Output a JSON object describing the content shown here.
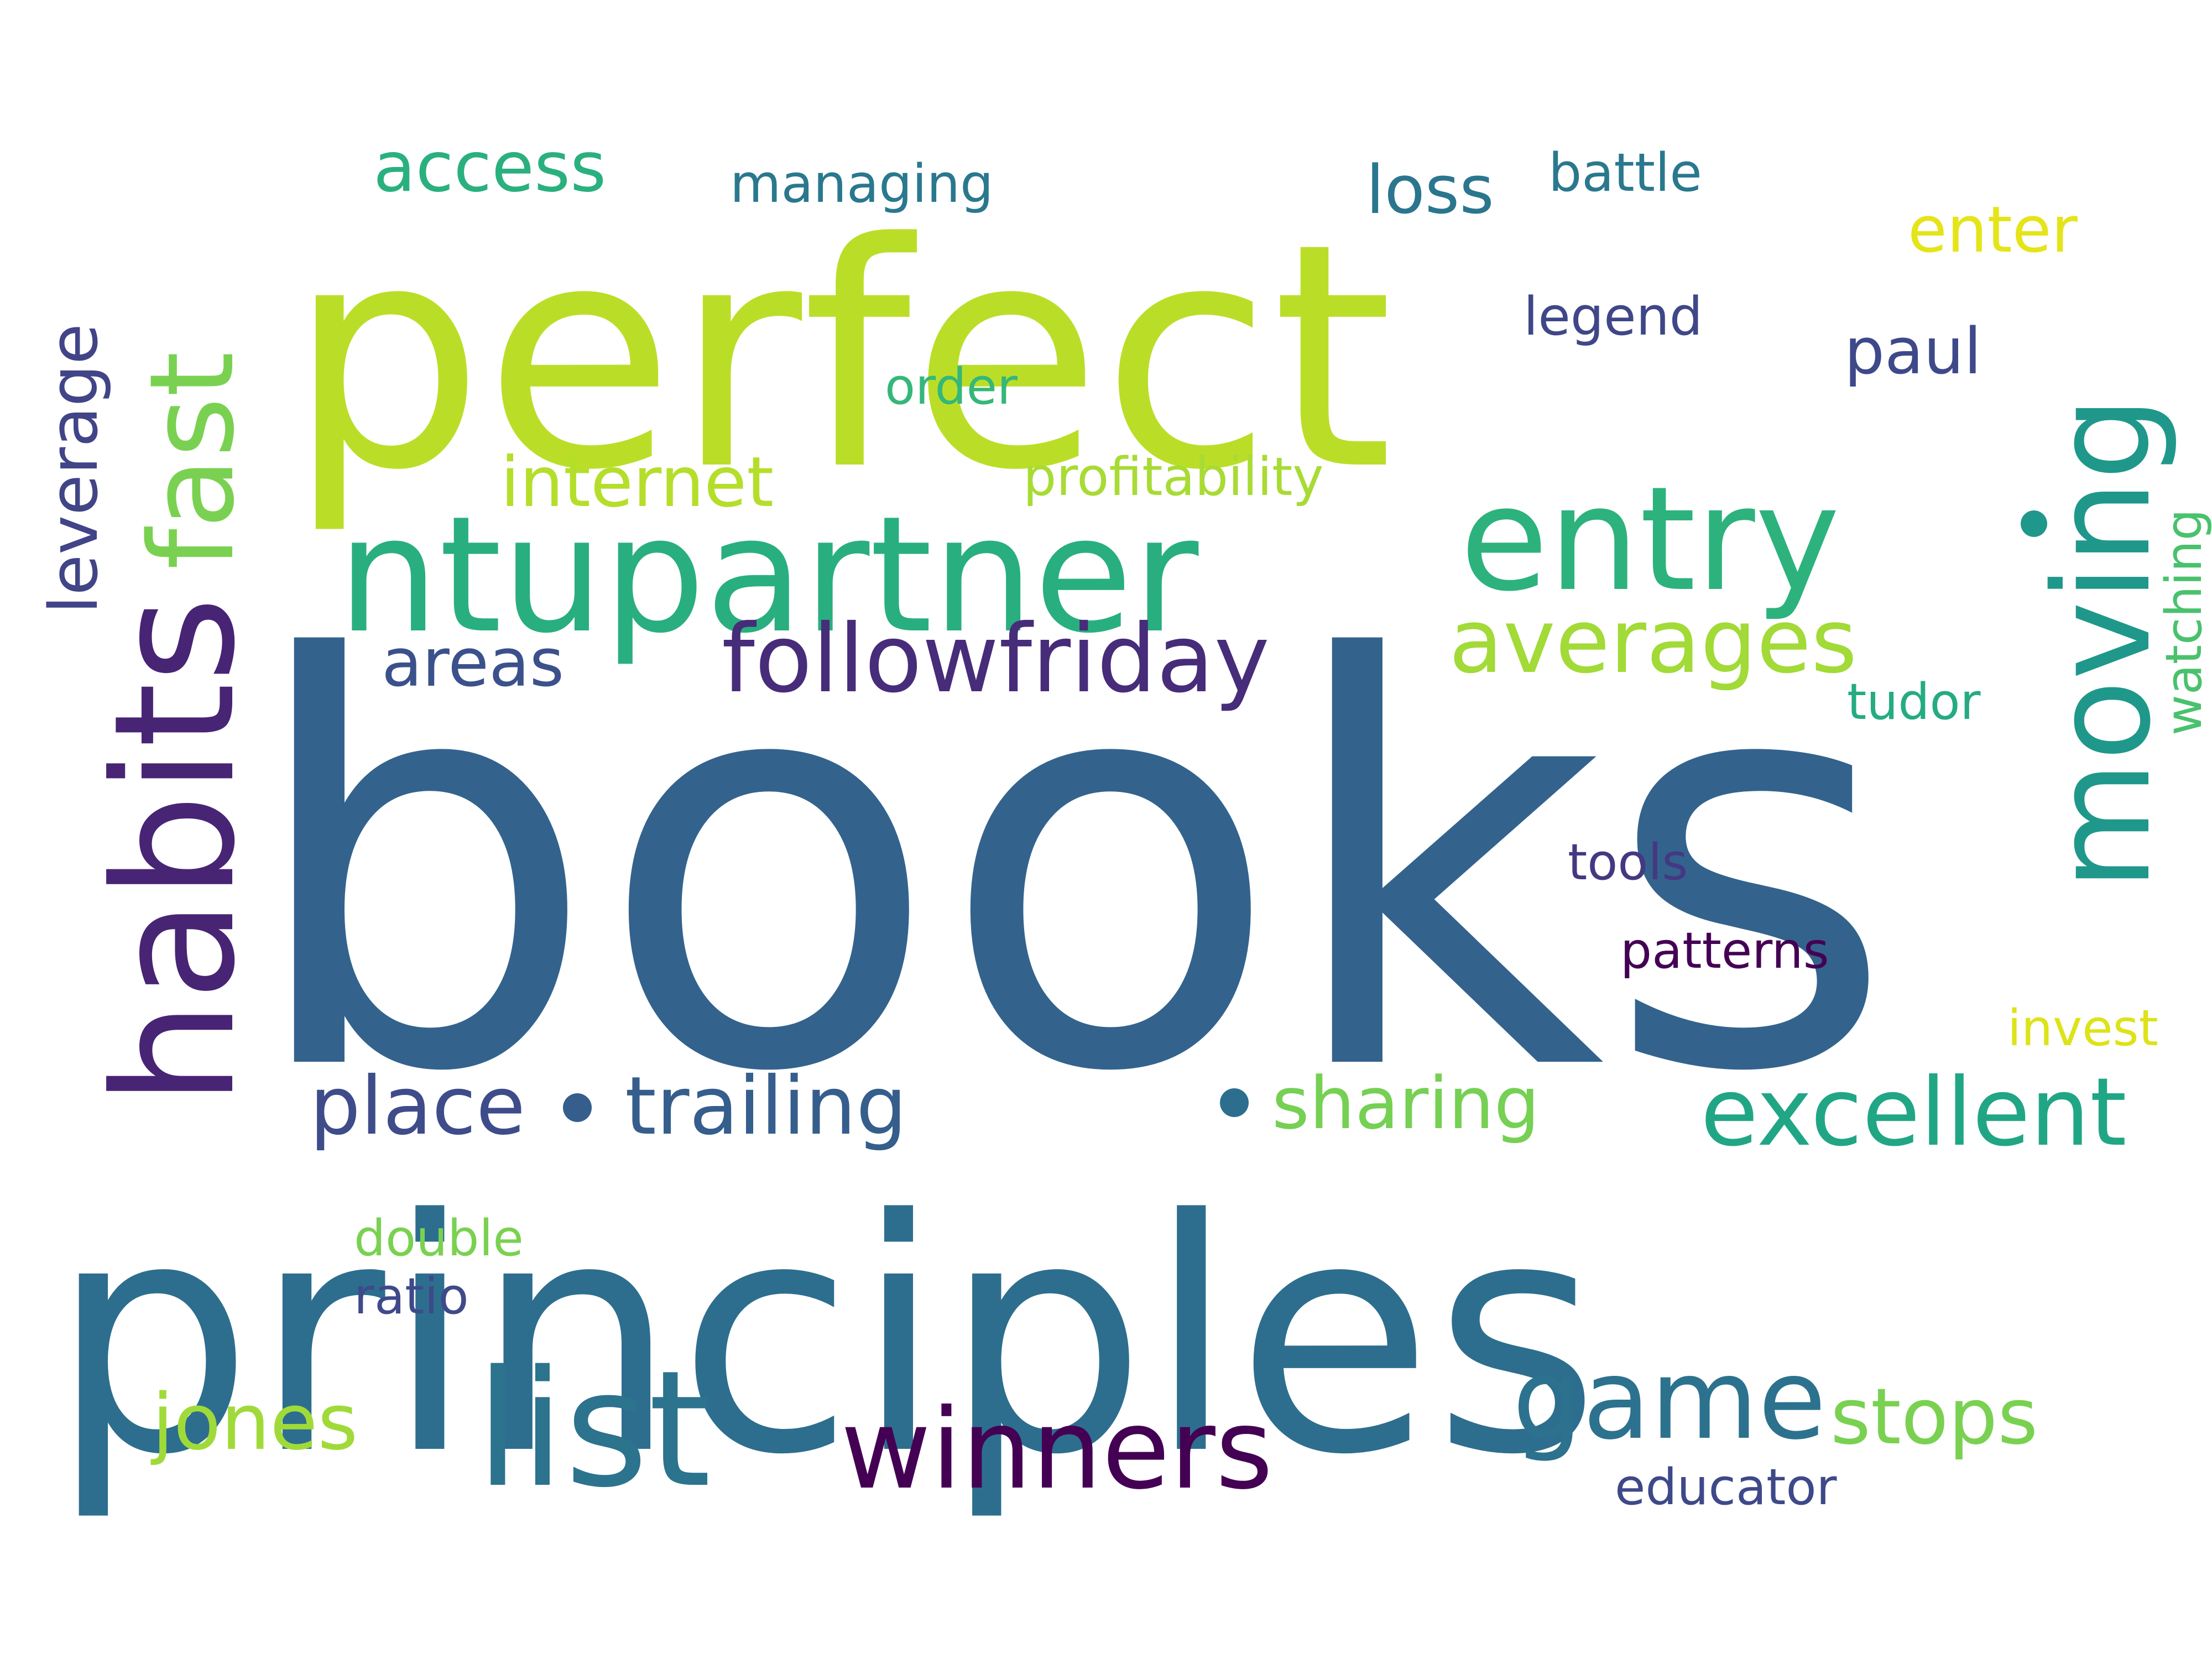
{
  "words": [
    {
      "text": "books",
      "color": "#33638d"
    },
    {
      "text": "principles",
      "color": "#2d6e8e"
    },
    {
      "text": "perfect",
      "color": "#bade28"
    },
    {
      "text": "ntupartner",
      "color": "#29af7f"
    },
    {
      "text": "habits",
      "color": "#482475"
    },
    {
      "text": "fast",
      "color": "#7ad151"
    },
    {
      "text": "entry",
      "color": "#2db27d"
    },
    {
      "text": "moving",
      "color": "#1f988b"
    },
    {
      "text": "list",
      "color": "#2c738e"
    },
    {
      "text": "winners",
      "color": "#440154"
    },
    {
      "text": "game",
      "color": "#2c728e"
    },
    {
      "text": "followfriday",
      "color": "#472c7a"
    },
    {
      "text": "averages",
      "color": "#a2da37"
    },
    {
      "text": "excellent",
      "color": "#21a685"
    },
    {
      "text": "trailing",
      "color": "#355e8d"
    },
    {
      "text": "place",
      "color": "#3e4c8a"
    },
    {
      "text": "sharing",
      "color": "#75d054"
    },
    {
      "text": "jones",
      "color": "#a0da39"
    },
    {
      "text": "stops",
      "color": "#7ad151"
    },
    {
      "text": "internet",
      "color": "#b5de2b"
    },
    {
      "text": "access",
      "color": "#2ab07f"
    },
    {
      "text": "areas",
      "color": "#3b518b"
    },
    {
      "text": "leverage",
      "color": "#414487"
    },
    {
      "text": "loss",
      "color": "#2a768e"
    },
    {
      "text": "paul",
      "color": "#3e4989"
    },
    {
      "text": "enter",
      "color": "#e5e419"
    },
    {
      "text": "managing",
      "color": "#2a788e"
    },
    {
      "text": "battle",
      "color": "#2a788e"
    },
    {
      "text": "legend",
      "color": "#3f4788"
    },
    {
      "text": "order",
      "color": "#35b779"
    },
    {
      "text": "profitability",
      "color": "#a8db34"
    },
    {
      "text": "watching",
      "color": "#4ac16d"
    },
    {
      "text": "tudor",
      "color": "#25ab82"
    },
    {
      "text": "tools",
      "color": "#453882"
    },
    {
      "text": "patterns",
      "color": "#440154"
    },
    {
      "text": "invest",
      "color": "#dde318"
    },
    {
      "text": "double",
      "color": "#7ad151"
    },
    {
      "text": "ratio",
      "color": "#3e4a89"
    },
    {
      "text": "educator",
      "color": "#3e4989"
    }
  ]
}
